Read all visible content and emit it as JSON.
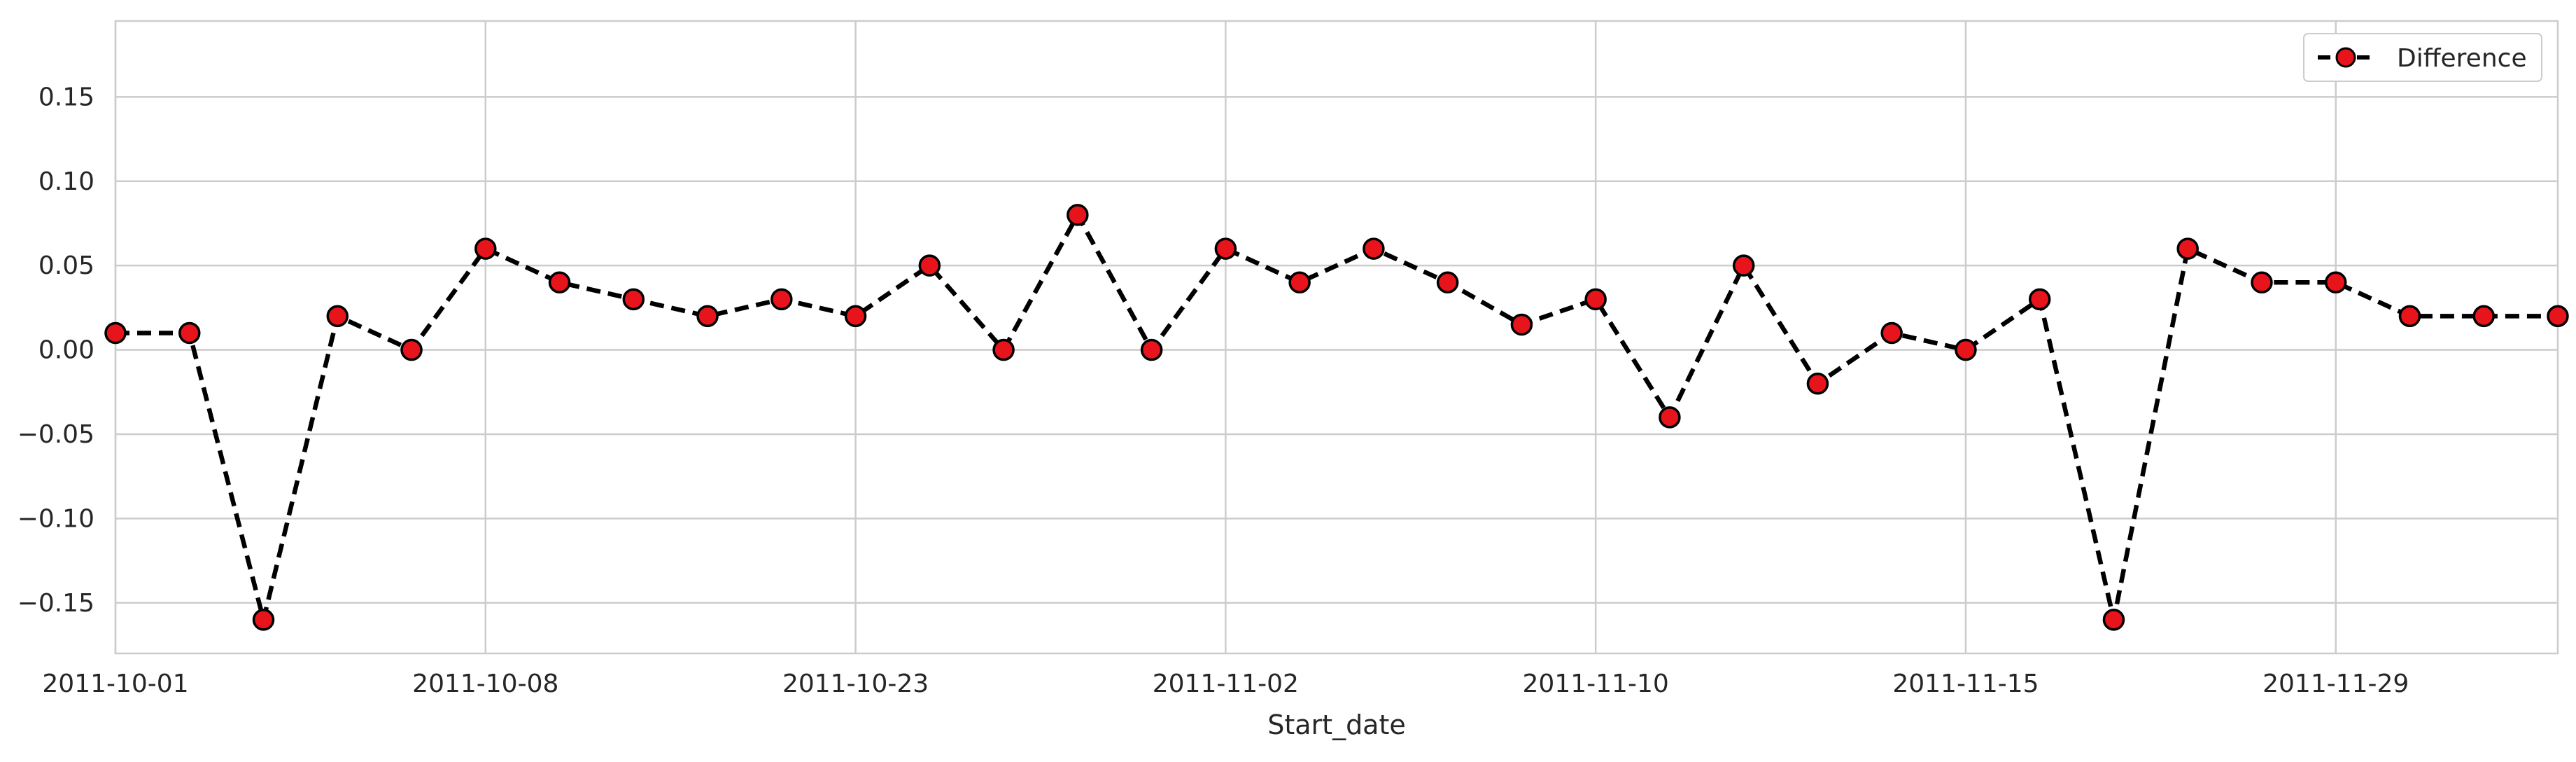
{
  "chart_data": {
    "type": "line",
    "title": "",
    "xlabel": "Start_date",
    "ylabel": "",
    "x_tick_labels": [
      "2011-10-01",
      "2011-10-08",
      "2011-10-23",
      "2011-11-02",
      "2011-11-10",
      "2011-11-15",
      "2011-11-29"
    ],
    "x_tick_positions": [
      0,
      5,
      10,
      15,
      20,
      25,
      30
    ],
    "xlim": [
      0,
      33
    ],
    "ylim": [
      -0.18,
      0.195
    ],
    "y_ticks": [
      -0.15,
      -0.1,
      -0.05,
      0.0,
      0.05,
      0.1,
      0.15
    ],
    "y_tick_labels": [
      "−0.15",
      "−0.10",
      "−0.05",
      "0.00",
      "0.05",
      "0.10",
      "0.15"
    ],
    "grid": true,
    "legend_position": "top-right",
    "series": [
      {
        "name": "Difference",
        "line_color": "#000000",
        "marker_color": "#e8141b",
        "line_style": "dashed",
        "x": [
          0,
          1,
          2,
          3,
          4,
          5,
          6,
          7,
          8,
          9,
          10,
          11,
          12,
          13,
          14,
          15,
          16,
          17,
          18,
          19,
          20,
          21,
          22,
          23,
          24,
          25,
          26,
          27,
          28,
          29,
          30,
          31,
          32,
          33
        ],
        "values": [
          0.01,
          0.01,
          -0.16,
          0.02,
          0.0,
          0.06,
          0.04,
          0.03,
          0.02,
          0.03,
          0.02,
          0.05,
          0.0,
          0.08,
          0.0,
          0.06,
          0.04,
          0.06,
          0.04,
          0.015,
          0.03,
          -0.04,
          0.05,
          -0.02,
          0.01,
          0.0,
          0.03,
          -0.16,
          0.06,
          0.04,
          0.04,
          0.02,
          0.02,
          0.02
        ]
      }
    ]
  }
}
